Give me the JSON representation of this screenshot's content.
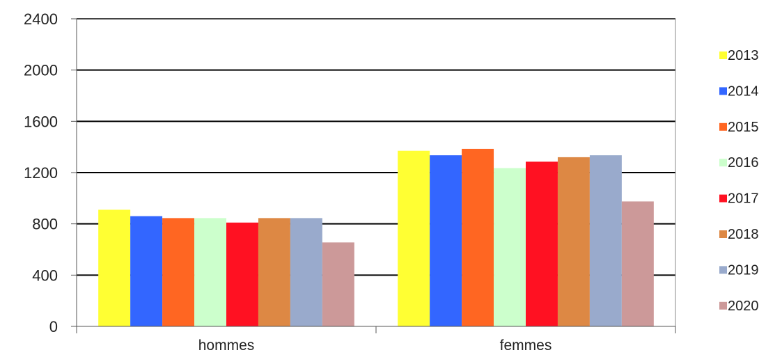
{
  "chart_data": {
    "type": "bar",
    "title": "",
    "xlabel": "",
    "ylabel": "",
    "categories": [
      "hommes",
      "femmes"
    ],
    "ylim": [
      0,
      2400
    ],
    "yticks": [
      0,
      400,
      800,
      1200,
      1600,
      2000,
      2400
    ],
    "grid": true,
    "legend_position": "right",
    "series": [
      {
        "name": "2013",
        "color": "#ffff33",
        "values": [
          910,
          1370
        ]
      },
      {
        "name": "2014",
        "color": "#3366ff",
        "values": [
          860,
          1335
        ]
      },
      {
        "name": "2015",
        "color": "#ff6622",
        "values": [
          845,
          1385
        ]
      },
      {
        "name": "2016",
        "color": "#ccffcc",
        "values": [
          845,
          1235
        ]
      },
      {
        "name": "2017",
        "color": "#ff1122",
        "values": [
          810,
          1285
        ]
      },
      {
        "name": "2018",
        "color": "#dd8844",
        "values": [
          845,
          1320
        ]
      },
      {
        "name": "2019",
        "color": "#99aacc",
        "values": [
          845,
          1335
        ]
      },
      {
        "name": "2020",
        "color": "#cc9999",
        "values": [
          655,
          975
        ]
      }
    ]
  }
}
